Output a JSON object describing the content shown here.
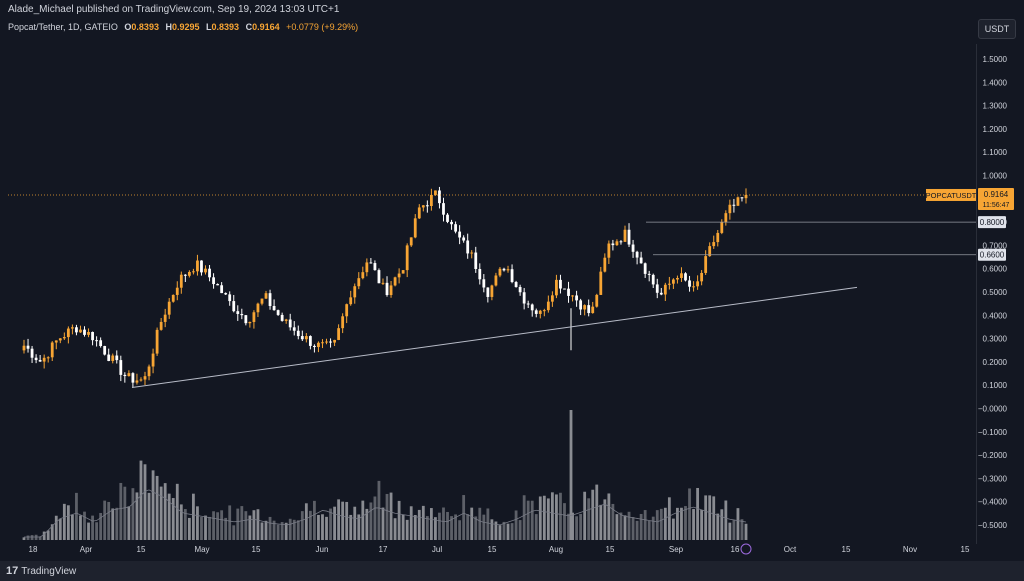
{
  "header": {
    "publisher": "Alade_Michael published on TradingView.com, Sep 19, 2024 13:03 UTC+1",
    "symbol": "Popcat/Tether, 1D, GATEIO",
    "ohlc": {
      "open_label": "O",
      "open": "0.8393",
      "high_label": "H",
      "high": "0.9295",
      "low_label": "L",
      "low": "0.8393",
      "close_label": "C",
      "close": "0.9164",
      "change": "+0.0779 (+9.29%)"
    },
    "currency": "USDT"
  },
  "price_tag": {
    "symbol": "POPCATUSDT",
    "price": "0.9164",
    "countdown": "11:56:47"
  },
  "level_tags": [
    "0.8000",
    "0.6600"
  ],
  "footer": {
    "logo_glyph": "17",
    "logo_text": "TradingView"
  },
  "colors": {
    "background": "#131722",
    "up": "#f7a534",
    "down": "#ffffff",
    "volume": "#9a9ca2",
    "tag": "#f7a534",
    "trendline": "#b8bcc8"
  },
  "chart_data": {
    "type": "candlestick",
    "y_axis_labels": [
      "1.5000",
      "1.4000",
      "1.3000",
      "1.2000",
      "1.1000",
      "1.0000",
      "0.9000",
      "0.8000",
      "0.7000",
      "0.6000",
      "0.5000",
      "0.4000",
      "0.3000",
      "0.2000",
      "0.1000",
      "−0.0000",
      "−0.1000",
      "−0.2000",
      "−0.3000",
      "−0.4000",
      "−0.5000"
    ],
    "ylim": [
      -0.5,
      1.5
    ],
    "x_axis_labels": [
      "18",
      "Apr",
      "15",
      "May",
      "15",
      "Jun",
      "17",
      "Jul",
      "15",
      "Aug",
      "15",
      "Sep",
      "16",
      "Oct",
      "15",
      "Nov",
      "15"
    ],
    "current_price": 0.9164,
    "horizontal_levels": [
      0.8,
      0.66
    ],
    "trendline": {
      "from": [
        0,
        0.09
      ],
      "to": [
        1,
        0.52
      ]
    },
    "price_checkpoints": [
      0.27,
      0.2,
      0.3,
      0.35,
      0.31,
      0.22,
      0.13,
      0.12,
      0.38,
      0.55,
      0.62,
      0.55,
      0.45,
      0.38,
      0.48,
      0.38,
      0.32,
      0.27,
      0.26,
      0.5,
      0.64,
      0.5,
      0.6,
      0.86,
      0.92,
      0.76,
      0.66,
      0.5,
      0.62,
      0.48,
      0.4,
      0.55,
      0.48,
      0.4,
      0.7,
      0.75,
      0.62,
      0.48,
      0.58,
      0.5,
      0.7,
      0.85,
      0.91
    ],
    "volume_checkpoints": [
      0.05,
      0.05,
      0.35,
      0.45,
      0.3,
      0.5,
      0.55,
      0.85,
      0.7,
      0.45,
      0.4,
      0.35,
      0.3,
      0.35,
      0.28,
      0.25,
      0.35,
      0.5,
      0.4,
      0.35,
      0.55,
      0.45,
      0.4,
      0.35,
      0.3,
      0.45,
      0.3,
      0.25,
      0.35,
      0.5,
      0.45,
      0.4,
      0.5,
      0.6,
      0.4,
      0.35,
      0.3,
      0.45,
      0.55,
      0.45,
      0.35,
      0.3
    ]
  }
}
